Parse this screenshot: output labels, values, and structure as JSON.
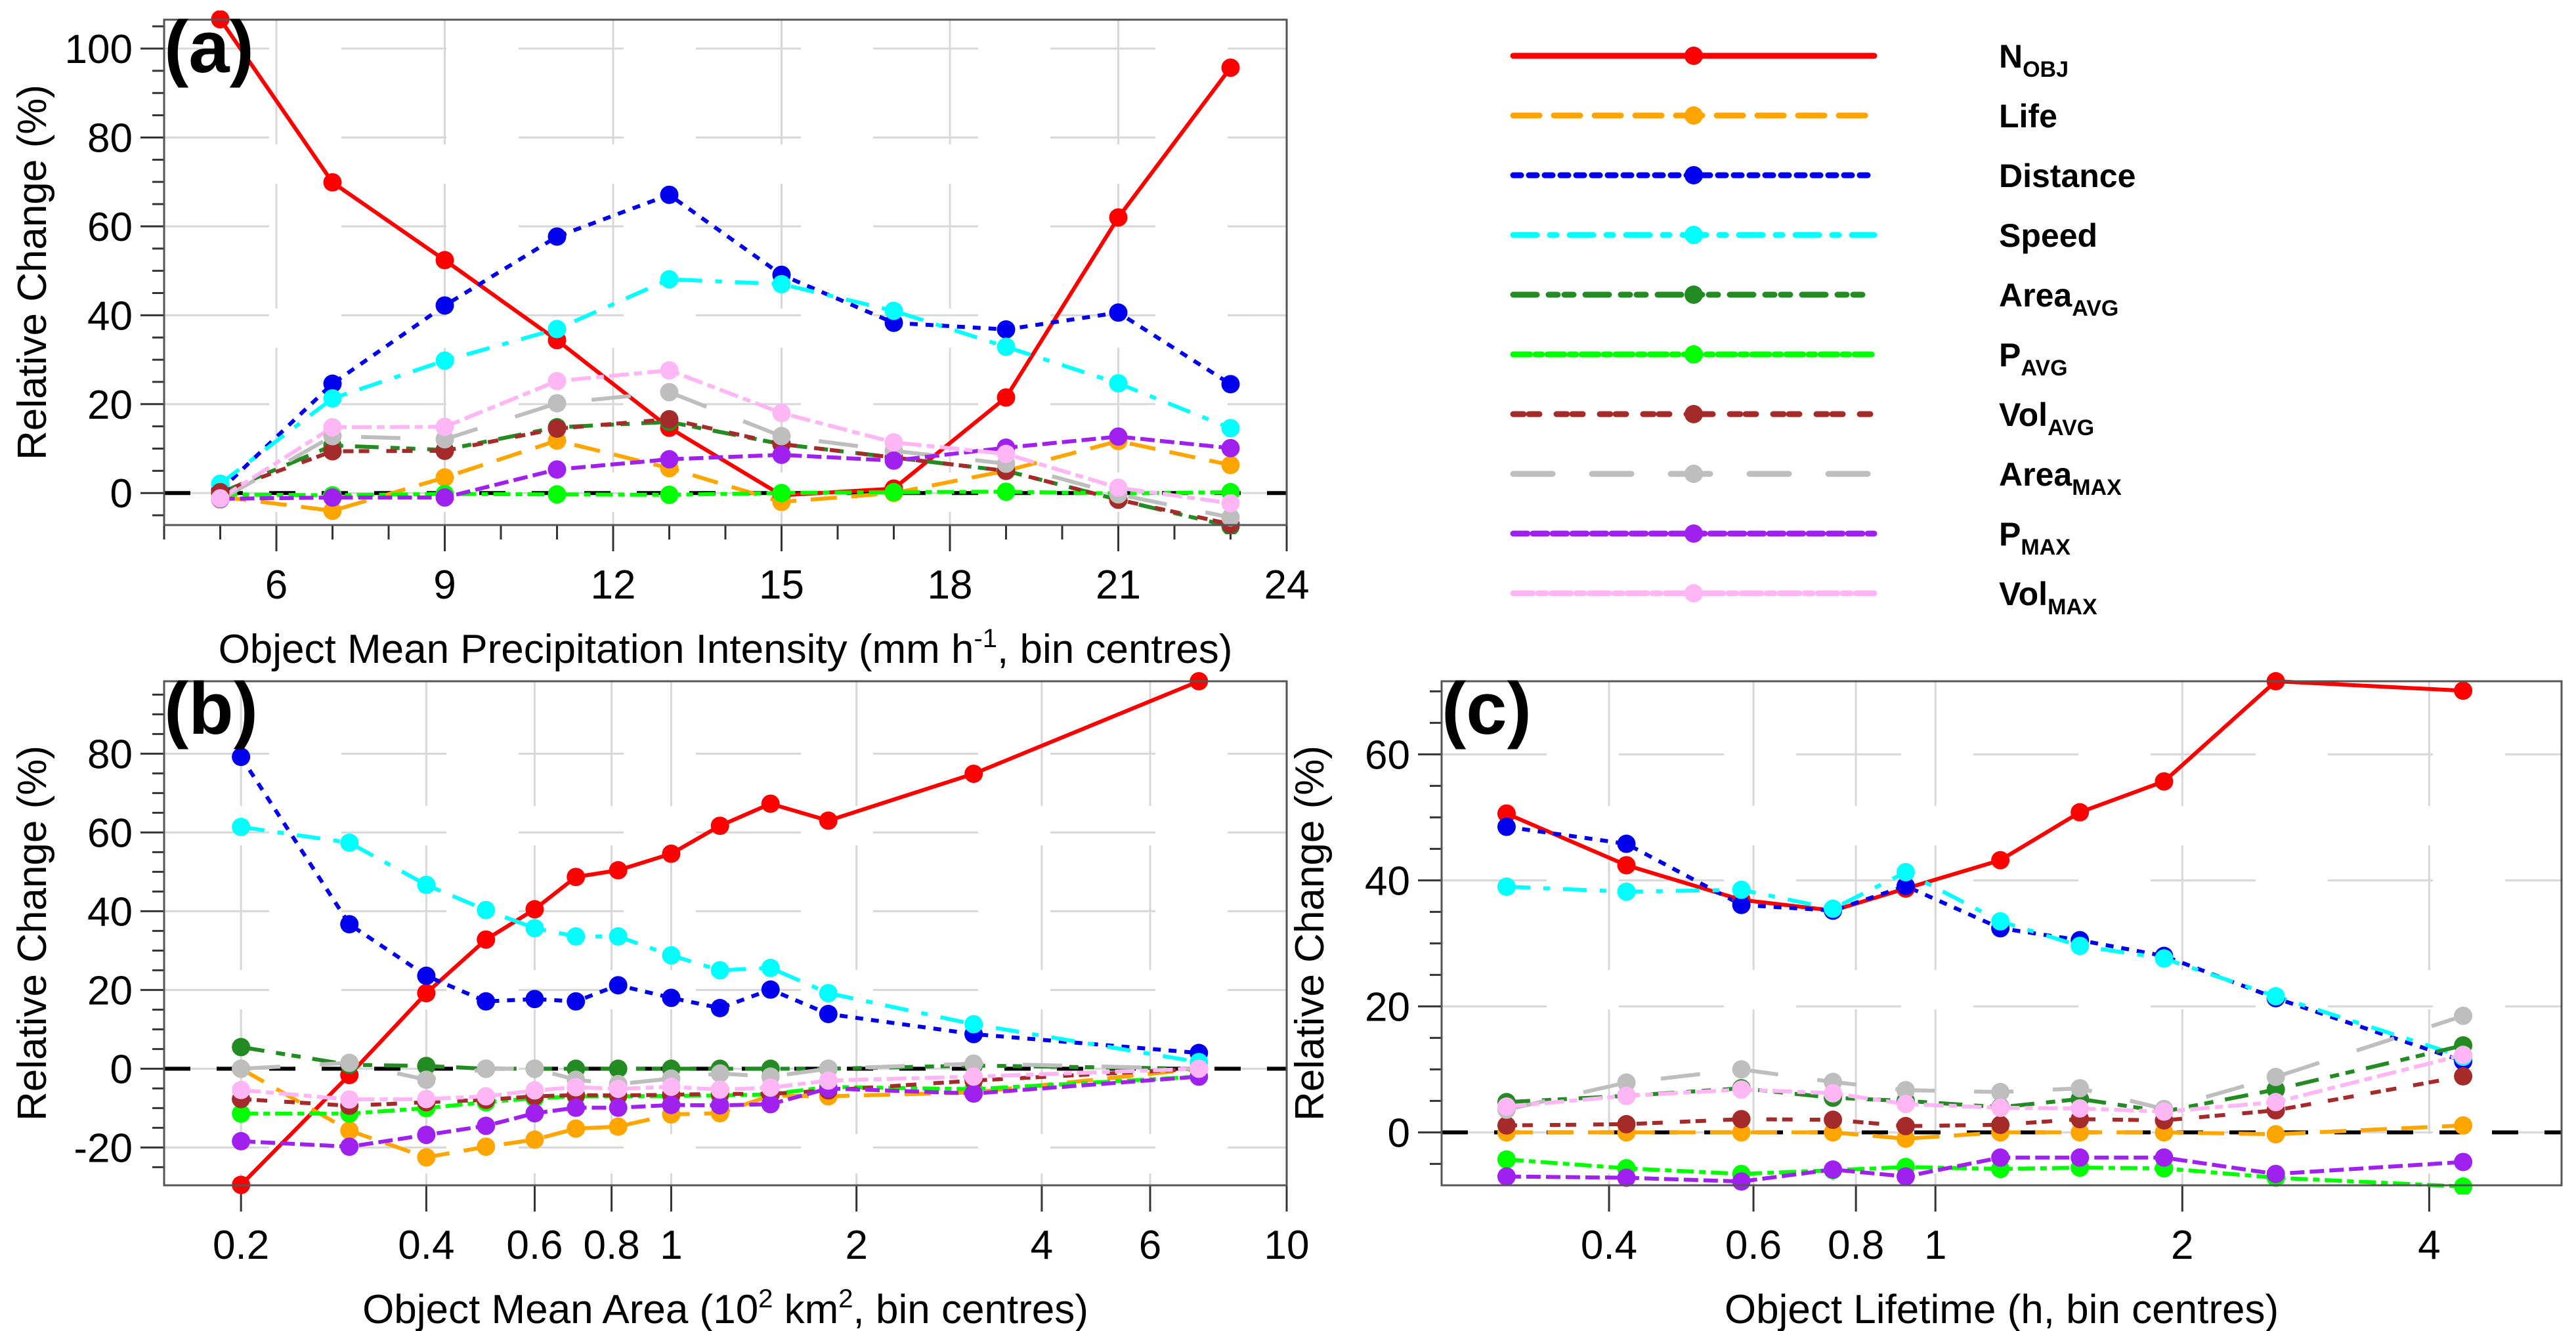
{
  "figure": {
    "legend": {
      "position": "top-right",
      "entries": [
        {
          "key": "NOBJ",
          "main": "N",
          "sub": "OBJ",
          "color": "#ff0000",
          "dash": "solid"
        },
        {
          "key": "Life",
          "main": "Life",
          "sub": "",
          "color": "#ffa500",
          "dash": "longdash"
        },
        {
          "key": "Distance",
          "main": "Distance",
          "sub": "",
          "color": "#0000ee",
          "dash": "dotted"
        },
        {
          "key": "Speed",
          "main": "Speed",
          "sub": "",
          "color": "#00ffff",
          "dash": "dashdot"
        },
        {
          "key": "AreaAVG",
          "main": "Area",
          "sub": "AVG",
          "color": "#228b22",
          "dash": "dashdotdot"
        },
        {
          "key": "PAVG",
          "main": "P",
          "sub": "AVG",
          "color": "#00ff00",
          "dash": "dashdot-dense"
        },
        {
          "key": "VolAVG",
          "main": "Vol",
          "sub": "AVG",
          "color": "#a52a2a",
          "dash": "dotdot"
        },
        {
          "key": "AreaMAX",
          "main": "Area",
          "sub": "MAX",
          "color": "#bebebe",
          "dash": "longdash-sparse"
        },
        {
          "key": "PMAX",
          "main": "P",
          "sub": "MAX",
          "color": "#a020f0",
          "dash": "dense-dash"
        },
        {
          "key": "VolMAX",
          "main": "Vol",
          "sub": "MAX",
          "color": "#ffb6f5",
          "dash": "dashdot-long"
        }
      ]
    }
  },
  "chart_data": [
    {
      "id": "a",
      "type": "line",
      "panel_label": "(a)",
      "title": "",
      "xlabel": "Object Mean Precipitation Intensity (mm h",
      "xlabel_sup": "-1",
      "xlabel_tail": ", bin centres)",
      "ylabel": "Relative Change (%)",
      "xscale": "linear",
      "xlim": [
        4,
        24
      ],
      "ylim": [
        -7.2,
        106.5
      ],
      "xticks": [
        6,
        9,
        12,
        15,
        18,
        21,
        24
      ],
      "xtick_labels": [
        "6",
        "9",
        "12",
        "15",
        "18",
        "21",
        "24"
      ],
      "yticks": [
        0,
        20,
        40,
        60,
        80,
        100
      ],
      "ytick_labels": [
        "0",
        "20",
        "40",
        "60",
        "80",
        "100"
      ],
      "grid": true,
      "zero_line": true,
      "x": [
        5,
        7,
        9,
        11,
        13,
        15,
        17,
        19,
        21,
        23
      ],
      "series": [
        {
          "name": "NOBJ",
          "values": [
            106.6,
            69.9,
            52.4,
            34.4,
            14.7,
            -0.5,
            1.0,
            21.5,
            62.0,
            95.7
          ]
        },
        {
          "name": "Life",
          "values": [
            -0.8,
            -4.0,
            3.5,
            11.8,
            5.6,
            -2.0,
            0.0,
            5.0,
            11.7,
            6.3
          ]
        },
        {
          "name": "Distance",
          "values": [
            0.6,
            24.6,
            42.2,
            57.7,
            67.1,
            49.1,
            38.3,
            36.8,
            40.6,
            24.5
          ]
        },
        {
          "name": "Speed",
          "values": [
            2.1,
            21.3,
            29.8,
            36.9,
            48.1,
            47.0,
            41.0,
            32.9,
            24.7,
            14.6
          ]
        },
        {
          "name": "AreaAVG",
          "values": [
            0.0,
            10.7,
            9.7,
            14.8,
            16.0,
            11.0,
            8.0,
            5.0,
            -1.5,
            -7.5
          ]
        },
        {
          "name": "PAVG",
          "values": [
            -0.3,
            -0.5,
            -0.2,
            -0.3,
            -0.4,
            0.0,
            0.2,
            0.3,
            -0.1,
            0.2
          ]
        },
        {
          "name": "VolAVG",
          "values": [
            0.2,
            9.4,
            9.5,
            14.5,
            16.6,
            11.0,
            8.0,
            5.0,
            -1.5,
            -7.0
          ]
        },
        {
          "name": "AreaMAX",
          "values": [
            -1.5,
            12.8,
            12.1,
            20.2,
            22.7,
            12.8,
            9.5,
            6.6,
            -0.3,
            -5.5
          ]
        },
        {
          "name": "PMAX",
          "values": [
            -1.3,
            -1.0,
            -1.0,
            5.3,
            7.6,
            8.6,
            7.3,
            10.2,
            12.7,
            10.1
          ]
        },
        {
          "name": "VolMAX",
          "values": [
            -1.2,
            14.8,
            14.9,
            25.2,
            27.6,
            18.0,
            11.4,
            8.8,
            1.2,
            -2.3
          ]
        }
      ]
    },
    {
      "id": "b",
      "type": "line",
      "panel_label": "(b)",
      "title": "",
      "xlabel": "Object Mean Area (10",
      "xlabel_sup": "2",
      "xlabel_mid": " km",
      "xlabel_sup2": "2",
      "xlabel_tail": ", bin centres)",
      "ylabel": "Relative Change (%)",
      "xscale": "log",
      "xlim": [
        0.15,
        10
      ],
      "ylim": [
        -29.6,
        98.4
      ],
      "xticks": [
        0.2,
        0.4,
        0.6,
        0.8,
        1,
        2,
        4,
        6,
        10
      ],
      "xtick_labels": [
        "0.2",
        "0.4",
        "0.6",
        "0.8",
        "1",
        "2",
        "4",
        "6",
        "10"
      ],
      "yticks": [
        -20,
        0,
        20,
        40,
        60,
        80
      ],
      "ytick_labels": [
        "-20",
        "0",
        "20",
        "40",
        "60",
        "80"
      ],
      "grid": true,
      "zero_line": true,
      "x": [
        0.2,
        0.3,
        0.4,
        0.5,
        0.6,
        0.7,
        0.82,
        1.0,
        1.2,
        1.45,
        1.8,
        3.1,
        7.2
      ],
      "series": [
        {
          "name": "NOBJ",
          "values": [
            -29.5,
            -1.6,
            19.2,
            32.8,
            40.5,
            48.7,
            50.4,
            54.6,
            61.7,
            67.3,
            63.0,
            74.9,
            98.4
          ]
        },
        {
          "name": "Life",
          "values": [
            0.0,
            -15.7,
            -22.5,
            -19.8,
            -18.0,
            -15.2,
            -14.7,
            -11.6,
            -11.3,
            -6.8,
            -7.0,
            -6.0,
            0.0
          ]
        },
        {
          "name": "Distance",
          "values": [
            79.2,
            36.7,
            23.6,
            17.1,
            17.7,
            17.1,
            21.2,
            18.0,
            15.4,
            20.1,
            13.9,
            8.8,
            4.0
          ]
        },
        {
          "name": "Speed",
          "values": [
            61.4,
            57.4,
            46.7,
            40.3,
            35.7,
            33.6,
            33.6,
            28.8,
            25.0,
            25.6,
            19.2,
            11.3,
            1.7
          ]
        },
        {
          "name": "AreaAVG",
          "values": [
            5.5,
            1.0,
            0.7,
            0.0,
            0.0,
            0.0,
            0.0,
            0.0,
            0.0,
            0.0,
            0.0,
            0.8,
            0.0
          ]
        },
        {
          "name": "PAVG",
          "values": [
            -11.4,
            -11.4,
            -10.0,
            -8.5,
            -7.5,
            -7.0,
            -7.0,
            -6.9,
            -6.8,
            -6.5,
            -4.6,
            -5.2,
            -2.0
          ]
        },
        {
          "name": "VolAVG",
          "values": [
            -7.7,
            -9.4,
            -8.5,
            -7.9,
            -7.0,
            -6.7,
            -6.8,
            -6.6,
            -6.4,
            -6.4,
            -5.5,
            -3.0,
            0.0
          ]
        },
        {
          "name": "AreaMAX",
          "values": [
            0.0,
            1.5,
            -2.8,
            0.0,
            0.0,
            -2.8,
            -3.9,
            -2.5,
            -1.2,
            -2.0,
            0.0,
            1.3,
            0.0
          ]
        },
        {
          "name": "PMAX",
          "values": [
            -18.4,
            -19.8,
            -16.8,
            -14.5,
            -11.3,
            -9.9,
            -9.9,
            -9.2,
            -9.3,
            -9.0,
            -5.0,
            -6.3,
            -2.0
          ]
        },
        {
          "name": "VolMAX",
          "values": [
            -5.4,
            -7.8,
            -7.7,
            -7.0,
            -5.5,
            -4.7,
            -5.1,
            -4.6,
            -5.3,
            -4.8,
            -3.0,
            -2.0,
            0.0
          ]
        }
      ]
    },
    {
      "id": "c",
      "type": "line",
      "panel_label": "(c)",
      "title": "",
      "xlabel": "Object Lifetime (h, bin centres)",
      "ylabel": "Relative Change (%)",
      "xscale": "log",
      "xlim": [
        0.25,
        5.8
      ],
      "ylim": [
        -8.4,
        71.6
      ],
      "xticks": [
        0.4,
        0.6,
        0.8,
        1,
        2,
        4
      ],
      "xtick_labels": [
        "0.4",
        "0.6",
        "0.8",
        "1",
        "2",
        "4"
      ],
      "yticks": [
        0,
        20,
        40,
        60
      ],
      "ytick_labels": [
        "0",
        "20",
        "40",
        "60"
      ],
      "grid": true,
      "zero_line": true,
      "x": [
        0.3,
        0.42,
        0.58,
        0.75,
        0.92,
        1.2,
        1.5,
        1.9,
        2.6,
        4.4
      ],
      "series": [
        {
          "name": "NOBJ",
          "values": [
            50.6,
            42.4,
            36.9,
            35.2,
            38.7,
            43.2,
            50.8,
            55.7,
            71.6,
            70.1
          ]
        },
        {
          "name": "Life",
          "values": [
            0.0,
            0.0,
            0.0,
            0.0,
            -1.0,
            0.0,
            0.0,
            0.0,
            -0.3,
            1.1
          ]
        },
        {
          "name": "Distance",
          "values": [
            48.5,
            45.8,
            36.1,
            35.2,
            39.1,
            32.4,
            30.5,
            28.0,
            21.3,
            11.3
          ]
        },
        {
          "name": "Speed",
          "values": [
            39.0,
            38.2,
            38.5,
            35.5,
            41.3,
            33.5,
            29.6,
            27.6,
            21.6,
            12.0
          ]
        },
        {
          "name": "AreaAVG",
          "values": [
            4.8,
            5.8,
            7.0,
            5.5,
            5.0,
            4.0,
            5.3,
            3.3,
            6.8,
            13.8
          ]
        },
        {
          "name": "PAVG",
          "values": [
            -4.3,
            -5.7,
            -6.6,
            -6.0,
            -5.5,
            -5.8,
            -5.6,
            -5.7,
            -7.2,
            -8.6
          ]
        },
        {
          "name": "VolAVG",
          "values": [
            1.1,
            1.3,
            2.1,
            2.0,
            1.0,
            1.2,
            2.1,
            1.9,
            3.5,
            8.9
          ]
        },
        {
          "name": "AreaMAX",
          "values": [
            3.6,
            7.9,
            10.0,
            8.0,
            6.7,
            6.4,
            7.0,
            3.7,
            8.8,
            18.5
          ]
        },
        {
          "name": "PMAX",
          "values": [
            -7.0,
            -7.2,
            -7.8,
            -5.9,
            -7.0,
            -4.0,
            -4.0,
            -4.0,
            -6.6,
            -4.7
          ]
        },
        {
          "name": "VolMAX",
          "values": [
            4.1,
            5.8,
            6.8,
            6.2,
            4.5,
            3.9,
            3.8,
            3.3,
            4.8,
            12.3
          ]
        }
      ]
    }
  ]
}
